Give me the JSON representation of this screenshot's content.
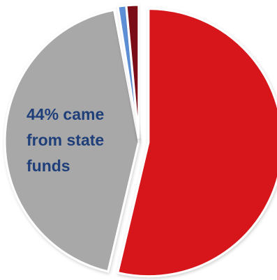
{
  "chart_data": {
    "type": "pie",
    "title": "",
    "slices": [
      {
        "value": 54.5,
        "color": "#d7141c"
      },
      {
        "value": 44.0,
        "color": "#a8a8a8"
      },
      {
        "value": 0.5,
        "color": "#ffffff"
      },
      {
        "value": 1.0,
        "color": "#5b8fd6"
      },
      {
        "value": 1.5,
        "color": "#7a1014"
      }
    ],
    "annotation": {
      "lines": [
        "44% came",
        "from state",
        "funds"
      ]
    }
  }
}
